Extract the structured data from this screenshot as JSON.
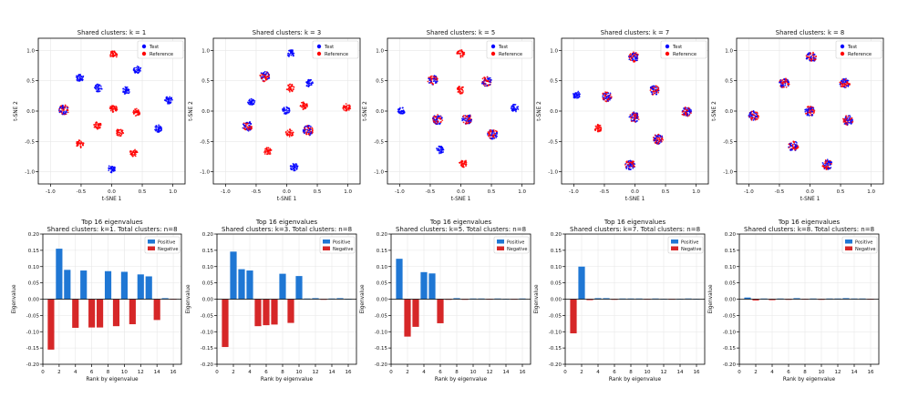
{
  "colors": {
    "test": "#0000ff",
    "reference": "#ff0000",
    "positive": "#1f77d4",
    "negative": "#d62728",
    "grid": "#e6e6e6",
    "axis": "#000000"
  },
  "chart_data": [
    {
      "type": "scatter",
      "title": "Shared clusters: k = 1",
      "xlabel": "t-SNE 1",
      "ylabel": "t-SNE 2",
      "xlim": [
        -1.2,
        1.2
      ],
      "ylim": [
        -1.2,
        1.2
      ],
      "xticks": [
        "-1.0",
        "-0.5",
        "0.0",
        "0.5",
        "1.0"
      ],
      "yticks": [
        "1.0",
        "0.5",
        "0.0",
        "-0.5",
        "-1.0"
      ],
      "grid": true,
      "legend_position": "top-right",
      "legend": [
        "Test",
        "Reference"
      ],
      "clusters": [
        {
          "x": -0.78,
          "y": 0.02,
          "kind": "mixed"
        },
        {
          "x": -0.52,
          "y": 0.55,
          "kind": "test"
        },
        {
          "x": -0.22,
          "y": 0.38,
          "kind": "test"
        },
        {
          "x": 0.03,
          "y": 0.93,
          "kind": "reference"
        },
        {
          "x": 0.42,
          "y": 0.68,
          "kind": "test"
        },
        {
          "x": 0.24,
          "y": 0.34,
          "kind": "test"
        },
        {
          "x": 0.93,
          "y": 0.18,
          "kind": "test"
        },
        {
          "x": -0.23,
          "y": -0.24,
          "kind": "reference"
        },
        {
          "x": 0.03,
          "y": 0.04,
          "kind": "reference"
        },
        {
          "x": 0.41,
          "y": -0.02,
          "kind": "reference"
        },
        {
          "x": 0.76,
          "y": -0.29,
          "kind": "test"
        },
        {
          "x": -0.52,
          "y": -0.54,
          "kind": "reference"
        },
        {
          "x": 0.13,
          "y": -0.35,
          "kind": "reference"
        },
        {
          "x": 0.36,
          "y": -0.69,
          "kind": "reference"
        },
        {
          "x": 0.0,
          "y": -0.95,
          "kind": "test"
        }
      ]
    },
    {
      "type": "scatter",
      "title": "Shared clusters: k = 3",
      "xlabel": "t-SNE 1",
      "ylabel": "t-SNE 2",
      "xlim": [
        -1.2,
        1.2
      ],
      "ylim": [
        -1.2,
        1.2
      ],
      "xticks": [
        "-1.0",
        "-0.5",
        "0.0",
        "0.5",
        "1.0"
      ],
      "yticks": [
        "1.0",
        "0.5",
        "0.0",
        "-0.5",
        "-1.0"
      ],
      "grid": true,
      "legend_position": "top-right",
      "legend": [
        "Test",
        "Reference"
      ],
      "clusters": [
        {
          "x": -0.36,
          "y": 0.57,
          "kind": "mixed"
        },
        {
          "x": 0.07,
          "y": 0.95,
          "kind": "test"
        },
        {
          "x": 0.37,
          "y": 0.46,
          "kind": "test"
        },
        {
          "x": -0.58,
          "y": 0.16,
          "kind": "test"
        },
        {
          "x": 0.06,
          "y": 0.38,
          "kind": "reference"
        },
        {
          "x": 0.28,
          "y": 0.09,
          "kind": "reference"
        },
        {
          "x": 0.98,
          "y": 0.06,
          "kind": "reference"
        },
        {
          "x": -0.01,
          "y": 0.01,
          "kind": "test"
        },
        {
          "x": -0.64,
          "y": -0.25,
          "kind": "mixed"
        },
        {
          "x": 0.05,
          "y": -0.36,
          "kind": "reference"
        },
        {
          "x": 0.35,
          "y": -0.32,
          "kind": "mixed"
        },
        {
          "x": -0.31,
          "y": -0.66,
          "kind": "reference"
        },
        {
          "x": 0.12,
          "y": -0.92,
          "kind": "test"
        }
      ]
    },
    {
      "type": "scatter",
      "title": "Shared clusters: k = 5",
      "xlabel": "t-SNE 1",
      "ylabel": "t-SNE 2",
      "xlim": [
        -1.2,
        1.2
      ],
      "ylim": [
        -1.2,
        1.2
      ],
      "xticks": [
        "-1.0",
        "-0.5",
        "0.0",
        "0.5",
        "1.0"
      ],
      "yticks": [
        "1.0",
        "0.5",
        "0.0",
        "-0.5",
        "-1.0"
      ],
      "grid": true,
      "legend_position": "top-right",
      "legend": [
        "Test",
        "Reference"
      ],
      "clusters": [
        {
          "x": 0.0,
          "y": 0.95,
          "kind": "reference"
        },
        {
          "x": -0.46,
          "y": 0.51,
          "kind": "mixed"
        },
        {
          "x": 0.42,
          "y": 0.49,
          "kind": "mixed"
        },
        {
          "x": 0.0,
          "y": 0.35,
          "kind": "reference"
        },
        {
          "x": -0.97,
          "y": 0.0,
          "kind": "test"
        },
        {
          "x": -0.38,
          "y": -0.14,
          "kind": "mixed"
        },
        {
          "x": 0.1,
          "y": -0.13,
          "kind": "mixed"
        },
        {
          "x": 0.88,
          "y": 0.05,
          "kind": "test"
        },
        {
          "x": 0.52,
          "y": -0.38,
          "kind": "mixed"
        },
        {
          "x": -0.34,
          "y": -0.64,
          "kind": "test"
        },
        {
          "x": 0.04,
          "y": -0.86,
          "kind": "reference"
        }
      ]
    },
    {
      "type": "scatter",
      "title": "Shared clusters: k = 7",
      "xlabel": "t-SNE 1",
      "ylabel": "t-SNE 2",
      "xlim": [
        -1.2,
        1.2
      ],
      "ylim": [
        -1.2,
        1.2
      ],
      "xticks": [
        "-1.0",
        "-0.5",
        "0.0",
        "0.5",
        "1.0"
      ],
      "yticks": [
        "1.0",
        "0.5",
        "0.0",
        "-0.5",
        "-1.0"
      ],
      "grid": true,
      "legend_position": "top-right",
      "legend": [
        "Test",
        "Reference"
      ],
      "clusters": [
        {
          "x": -0.02,
          "y": 0.89,
          "kind": "mixed"
        },
        {
          "x": -0.96,
          "y": 0.27,
          "kind": "test"
        },
        {
          "x": -0.46,
          "y": 0.24,
          "kind": "mixed"
        },
        {
          "x": 0.32,
          "y": 0.34,
          "kind": "mixed"
        },
        {
          "x": -0.01,
          "y": -0.1,
          "kind": "mixed"
        },
        {
          "x": 0.84,
          "y": -0.01,
          "kind": "mixed"
        },
        {
          "x": -0.6,
          "y": -0.28,
          "kind": "reference"
        },
        {
          "x": 0.38,
          "y": -0.46,
          "kind": "mixed"
        },
        {
          "x": -0.08,
          "y": -0.89,
          "kind": "mixed"
        }
      ]
    },
    {
      "type": "scatter",
      "title": "Shared clusters: k = 8",
      "xlabel": "t-SNE 1",
      "ylabel": "t-SNE 2",
      "xlim": [
        -1.2,
        1.2
      ],
      "ylim": [
        -1.2,
        1.2
      ],
      "xticks": [
        "-1.0",
        "-0.5",
        "0.0",
        "0.5",
        "1.0"
      ],
      "yticks": [
        "1.0",
        "0.5",
        "0.0",
        "-0.5",
        "-1.0"
      ],
      "grid": true,
      "legend_position": "top-right",
      "legend": [
        "Test",
        "Reference"
      ],
      "clusters": [
        {
          "x": 0.02,
          "y": 0.89,
          "kind": "mixed"
        },
        {
          "x": -0.42,
          "y": 0.46,
          "kind": "mixed"
        },
        {
          "x": 0.57,
          "y": 0.46,
          "kind": "mixed"
        },
        {
          "x": -0.92,
          "y": -0.08,
          "kind": "mixed"
        },
        {
          "x": 0.0,
          "y": 0.0,
          "kind": "mixed"
        },
        {
          "x": 0.62,
          "y": -0.15,
          "kind": "mixed"
        },
        {
          "x": -0.27,
          "y": -0.58,
          "kind": "mixed"
        },
        {
          "x": 0.28,
          "y": -0.88,
          "kind": "mixed"
        }
      ]
    },
    {
      "type": "bar",
      "title": "Top 16 eigenvalues",
      "subtitle": "Shared clusters: k=1. Total clusters: n=8",
      "xlabel": "Rank by eigenvalue",
      "ylabel": "Eigenvalue",
      "xlim": [
        0,
        17
      ],
      "ylim": [
        -0.2,
        0.2
      ],
      "xticks": [
        "0",
        "2",
        "4",
        "6",
        "8",
        "10",
        "12",
        "14",
        "16"
      ],
      "yticks": [
        "0.20",
        "0.15",
        "0.10",
        "0.05",
        "0.00",
        "-0.05",
        "-0.10",
        "-0.15",
        "-0.20"
      ],
      "grid": true,
      "legend_position": "top-right",
      "legend": [
        "Positive",
        "Negative"
      ],
      "x": [
        1,
        2,
        3,
        4,
        5,
        6,
        7,
        8,
        9,
        10,
        11,
        12,
        13,
        14,
        15,
        16
      ],
      "values": [
        -0.155,
        0.155,
        0.09,
        -0.088,
        0.088,
        -0.087,
        -0.087,
        0.086,
        -0.083,
        0.084,
        -0.077,
        0.076,
        0.07,
        -0.064,
        0.003,
        -0.001
      ]
    },
    {
      "type": "bar",
      "title": "Top 16 eigenvalues",
      "subtitle": "Shared clusters: k=3. Total clusters: n=8",
      "xlabel": "Rank by eigenvalue",
      "ylabel": "Eigenvalue",
      "xlim": [
        0,
        17
      ],
      "ylim": [
        -0.2,
        0.2
      ],
      "xticks": [
        "0",
        "2",
        "4",
        "6",
        "8",
        "10",
        "12",
        "14",
        "16"
      ],
      "yticks": [
        "0.20",
        "0.15",
        "0.10",
        "0.05",
        "0.00",
        "-0.05",
        "-0.10",
        "-0.15",
        "-0.20"
      ],
      "grid": true,
      "legend_position": "top-right",
      "legend": [
        "Positive",
        "Negative"
      ],
      "x": [
        1,
        2,
        3,
        4,
        5,
        6,
        7,
        8,
        9,
        10,
        11,
        12,
        13,
        14,
        15,
        16
      ],
      "values": [
        -0.147,
        0.146,
        0.092,
        0.088,
        -0.083,
        -0.08,
        -0.078,
        0.078,
        -0.073,
        0.071,
        0.002,
        0.003,
        -0.002,
        0.002,
        0.003,
        0.0
      ]
    },
    {
      "type": "bar",
      "title": "Top 16 eigenvalues",
      "subtitle": "Shared clusters: k=5. Total clusters: n=8",
      "xlabel": "Rank by eigenvalue",
      "ylabel": "Eigenvalue",
      "xlim": [
        0,
        17
      ],
      "ylim": [
        -0.2,
        0.2
      ],
      "xticks": [
        "0",
        "2",
        "4",
        "6",
        "8",
        "10",
        "12",
        "14",
        "16"
      ],
      "yticks": [
        "0.20",
        "0.15",
        "0.10",
        "0.05",
        "0.00",
        "-0.05",
        "-0.10",
        "-0.15",
        "-0.20"
      ],
      "grid": true,
      "legend_position": "top-right",
      "legend": [
        "Positive",
        "Negative"
      ],
      "x": [
        1,
        2,
        3,
        4,
        5,
        6,
        7,
        8,
        9,
        10,
        11,
        12,
        13,
        14,
        15,
        16
      ],
      "values": [
        0.124,
        -0.115,
        -0.085,
        0.083,
        0.079,
        -0.074,
        -0.002,
        0.003,
        -0.002,
        0.002,
        0.002,
        -0.001,
        0.002,
        0.001,
        -0.001,
        0.002
      ]
    },
    {
      "type": "bar",
      "title": "Top 16 eigenvalues",
      "subtitle": "Shared clusters: k=7. Total clusters: n=8",
      "xlabel": "Rank by eigenvalue",
      "ylabel": "Eigenvalue",
      "xlim": [
        0,
        17
      ],
      "ylim": [
        -0.2,
        0.2
      ],
      "xticks": [
        "0",
        "2",
        "4",
        "6",
        "8",
        "10",
        "12",
        "14",
        "16"
      ],
      "yticks": [
        "0.20",
        "0.15",
        "0.10",
        "0.05",
        "0.00",
        "-0.05",
        "-0.10",
        "-0.15",
        "-0.20"
      ],
      "grid": true,
      "legend_position": "top-right",
      "legend": [
        "Positive",
        "Negative"
      ],
      "x": [
        1,
        2,
        3,
        4,
        5,
        6,
        7,
        8,
        9,
        10,
        11,
        12,
        13,
        14,
        15,
        16
      ],
      "values": [
        -0.105,
        0.1,
        -0.003,
        0.003,
        0.003,
        -0.002,
        0.002,
        0.002,
        0.002,
        -0.001,
        0.002,
        0.001,
        -0.001,
        0.001,
        0.002,
        0.001
      ]
    },
    {
      "type": "bar",
      "title": "Top 16 eigenvalues",
      "subtitle": "Shared clusters: k=8. Total clusters: n=8",
      "xlabel": "Rank by eigenvalue",
      "ylabel": "Eigenvalue",
      "xlim": [
        0,
        17
      ],
      "ylim": [
        -0.2,
        0.2
      ],
      "xticks": [
        "0",
        "2",
        "4",
        "6",
        "8",
        "10",
        "12",
        "14",
        "16"
      ],
      "yticks": [
        "0.20",
        "0.15",
        "0.10",
        "0.05",
        "0.00",
        "-0.05",
        "-0.10",
        "-0.15",
        "-0.20"
      ],
      "grid": true,
      "legend_position": "top-right",
      "legend": [
        "Positive",
        "Negative"
      ],
      "x": [
        1,
        2,
        3,
        4,
        5,
        6,
        7,
        8,
        9,
        10,
        11,
        12,
        13,
        14,
        15,
        16
      ],
      "values": [
        0.005,
        -0.004,
        0.002,
        -0.003,
        0.002,
        -0.002,
        0.003,
        -0.001,
        0.002,
        -0.002,
        0.002,
        0.002,
        0.003,
        0.002,
        0.002,
        -0.001
      ]
    }
  ]
}
